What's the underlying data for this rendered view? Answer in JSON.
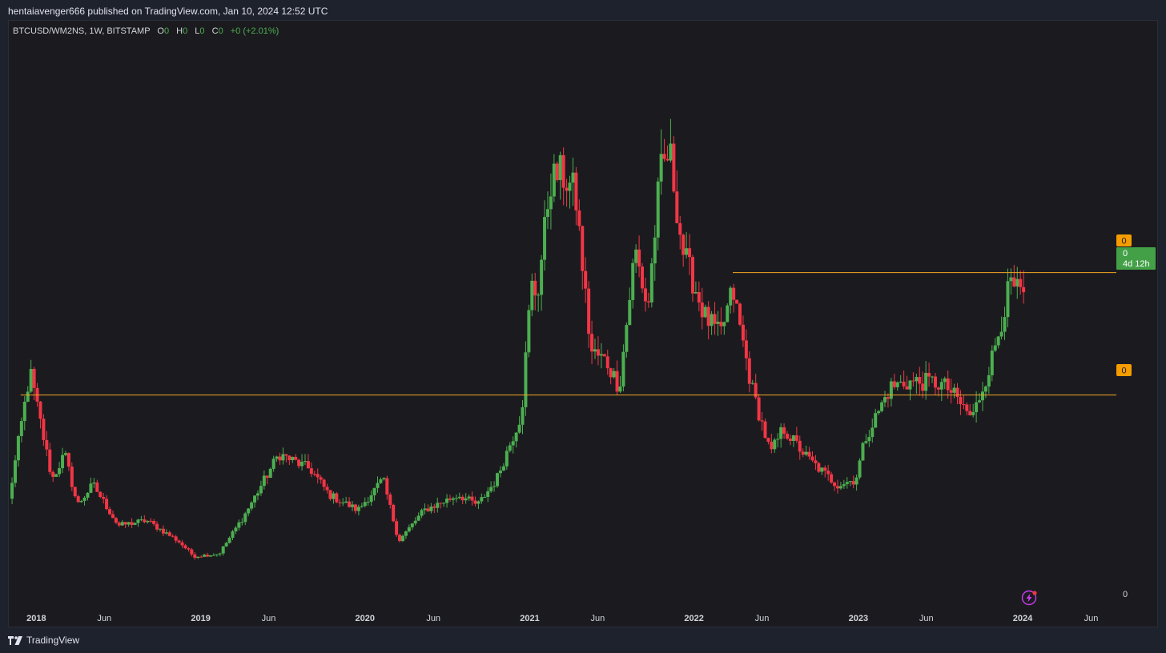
{
  "header": {
    "publish_text": "hentaiavenger666 published on TradingView.com, Jan 10, 2024 12:52 UTC"
  },
  "legend": {
    "symbol": "BTCUSD/WM2NS, 1W, BITSTAMP",
    "o_label": "O",
    "o_value": "0",
    "h_label": "H",
    "h_value": "0",
    "l_label": "L",
    "l_value": "0",
    "c_label": "C",
    "c_value": "0",
    "change": "+0 (+2.01%)"
  },
  "price_scale": {
    "upper_level_label": "0",
    "current_price_label": "0",
    "countdown": "4d 12h",
    "lower_level_label": "0",
    "bottom_label": "0"
  },
  "footer": {
    "brand": "TradingView"
  },
  "colors": {
    "up": "#4caf50",
    "down": "#f23645",
    "level_line": "#f5a623",
    "level_label_bg": "#f59c00",
    "price_label_bg": "#43a047",
    "background": "#1b1b1f",
    "alert_icon": "#c93cf0"
  },
  "icons": {
    "alert": "lightning-alert-icon",
    "brand": "tradingview-logo-icon"
  },
  "chart_data": {
    "type": "candlestick",
    "title": "",
    "series_name": "BTCUSD/WM2NS",
    "interval": "1W",
    "exchange": "BITSTAMP",
    "x_axis_ticks": [
      {
        "label": "2018",
        "date": "2018-01-01"
      },
      {
        "label": "Jun",
        "date": "2018-06-01"
      },
      {
        "label": "2019",
        "date": "2019-01-01"
      },
      {
        "label": "Jun",
        "date": "2019-06-01"
      },
      {
        "label": "2020",
        "date": "2020-01-01"
      },
      {
        "label": "Jun",
        "date": "2020-06-01"
      },
      {
        "label": "2021",
        "date": "2021-01-01"
      },
      {
        "label": "Jun",
        "date": "2021-06-01"
      },
      {
        "label": "2022",
        "date": "2022-01-01"
      },
      {
        "label": "Jun",
        "date": "2022-06-01"
      },
      {
        "label": "2023",
        "date": "2023-01-01"
      },
      {
        "label": "Jun",
        "date": "2023-06-01"
      },
      {
        "label": "2024",
        "date": "2024-01-01"
      },
      {
        "label": "Jun",
        "date": "2024-06-01"
      }
    ],
    "x_range": [
      "2017-10-30",
      "2024-07-20"
    ],
    "y_range": [
      0,
      100
    ],
    "y_scale_note": "relative price-to-M2 ratio; price scale labels show 0",
    "anchors": [
      [
        "2017-11-01",
        18
      ],
      [
        "2017-12-18",
        43
      ],
      [
        "2018-02-05",
        22
      ],
      [
        "2018-03-05",
        27
      ],
      [
        "2018-04-02",
        17
      ],
      [
        "2018-05-07",
        21
      ],
      [
        "2018-07-02",
        13
      ],
      [
        "2018-09-03",
        14
      ],
      [
        "2018-11-12",
        10
      ],
      [
        "2018-12-17",
        7
      ],
      [
        "2019-02-11",
        7.5
      ],
      [
        "2019-04-08",
        15
      ],
      [
        "2019-06-24",
        27
      ],
      [
        "2019-09-02",
        24
      ],
      [
        "2019-10-14",
        19
      ],
      [
        "2019-12-16",
        16
      ],
      [
        "2020-02-10",
        22
      ],
      [
        "2020-03-16",
        10
      ],
      [
        "2020-05-11",
        16
      ],
      [
        "2020-07-27",
        19
      ],
      [
        "2020-09-07",
        17
      ],
      [
        "2020-10-19",
        22
      ],
      [
        "2020-12-14",
        35
      ],
      [
        "2021-01-04",
        60
      ],
      [
        "2021-01-18",
        58
      ],
      [
        "2021-02-15",
        80
      ],
      [
        "2021-03-08",
        82
      ],
      [
        "2021-04-12",
        78
      ],
      [
        "2021-05-17",
        47
      ],
      [
        "2021-06-21",
        45
      ],
      [
        "2021-07-19",
        40
      ],
      [
        "2021-08-23",
        67
      ],
      [
        "2021-09-20",
        55
      ],
      [
        "2021-10-18",
        82
      ],
      [
        "2021-11-08",
        86
      ],
      [
        "2021-12-06",
        67
      ],
      [
        "2022-01-24",
        54
      ],
      [
        "2022-02-28",
        50
      ],
      [
        "2022-03-28",
        59
      ],
      [
        "2022-05-09",
        40
      ],
      [
        "2022-06-20",
        27
      ],
      [
        "2022-07-18",
        32
      ],
      [
        "2022-09-12",
        26
      ],
      [
        "2022-11-14",
        21
      ],
      [
        "2022-12-26",
        22
      ],
      [
        "2023-01-16",
        30
      ],
      [
        "2023-03-13",
        40
      ],
      [
        "2023-04-17",
        41
      ],
      [
        "2023-06-19",
        41
      ],
      [
        "2023-07-17",
        40
      ],
      [
        "2023-09-11",
        34
      ],
      [
        "2023-10-23",
        45
      ],
      [
        "2023-12-04",
        60
      ],
      [
        "2024-01-08",
        57
      ]
    ],
    "horizontal_levels": [
      {
        "name": "upper-level",
        "y": 62.4,
        "from": "2022-03-28"
      },
      {
        "name": "lower-level",
        "y": 38.5,
        "from": "2017-11-27"
      }
    ],
    "last_change_pct": 2.01
  }
}
